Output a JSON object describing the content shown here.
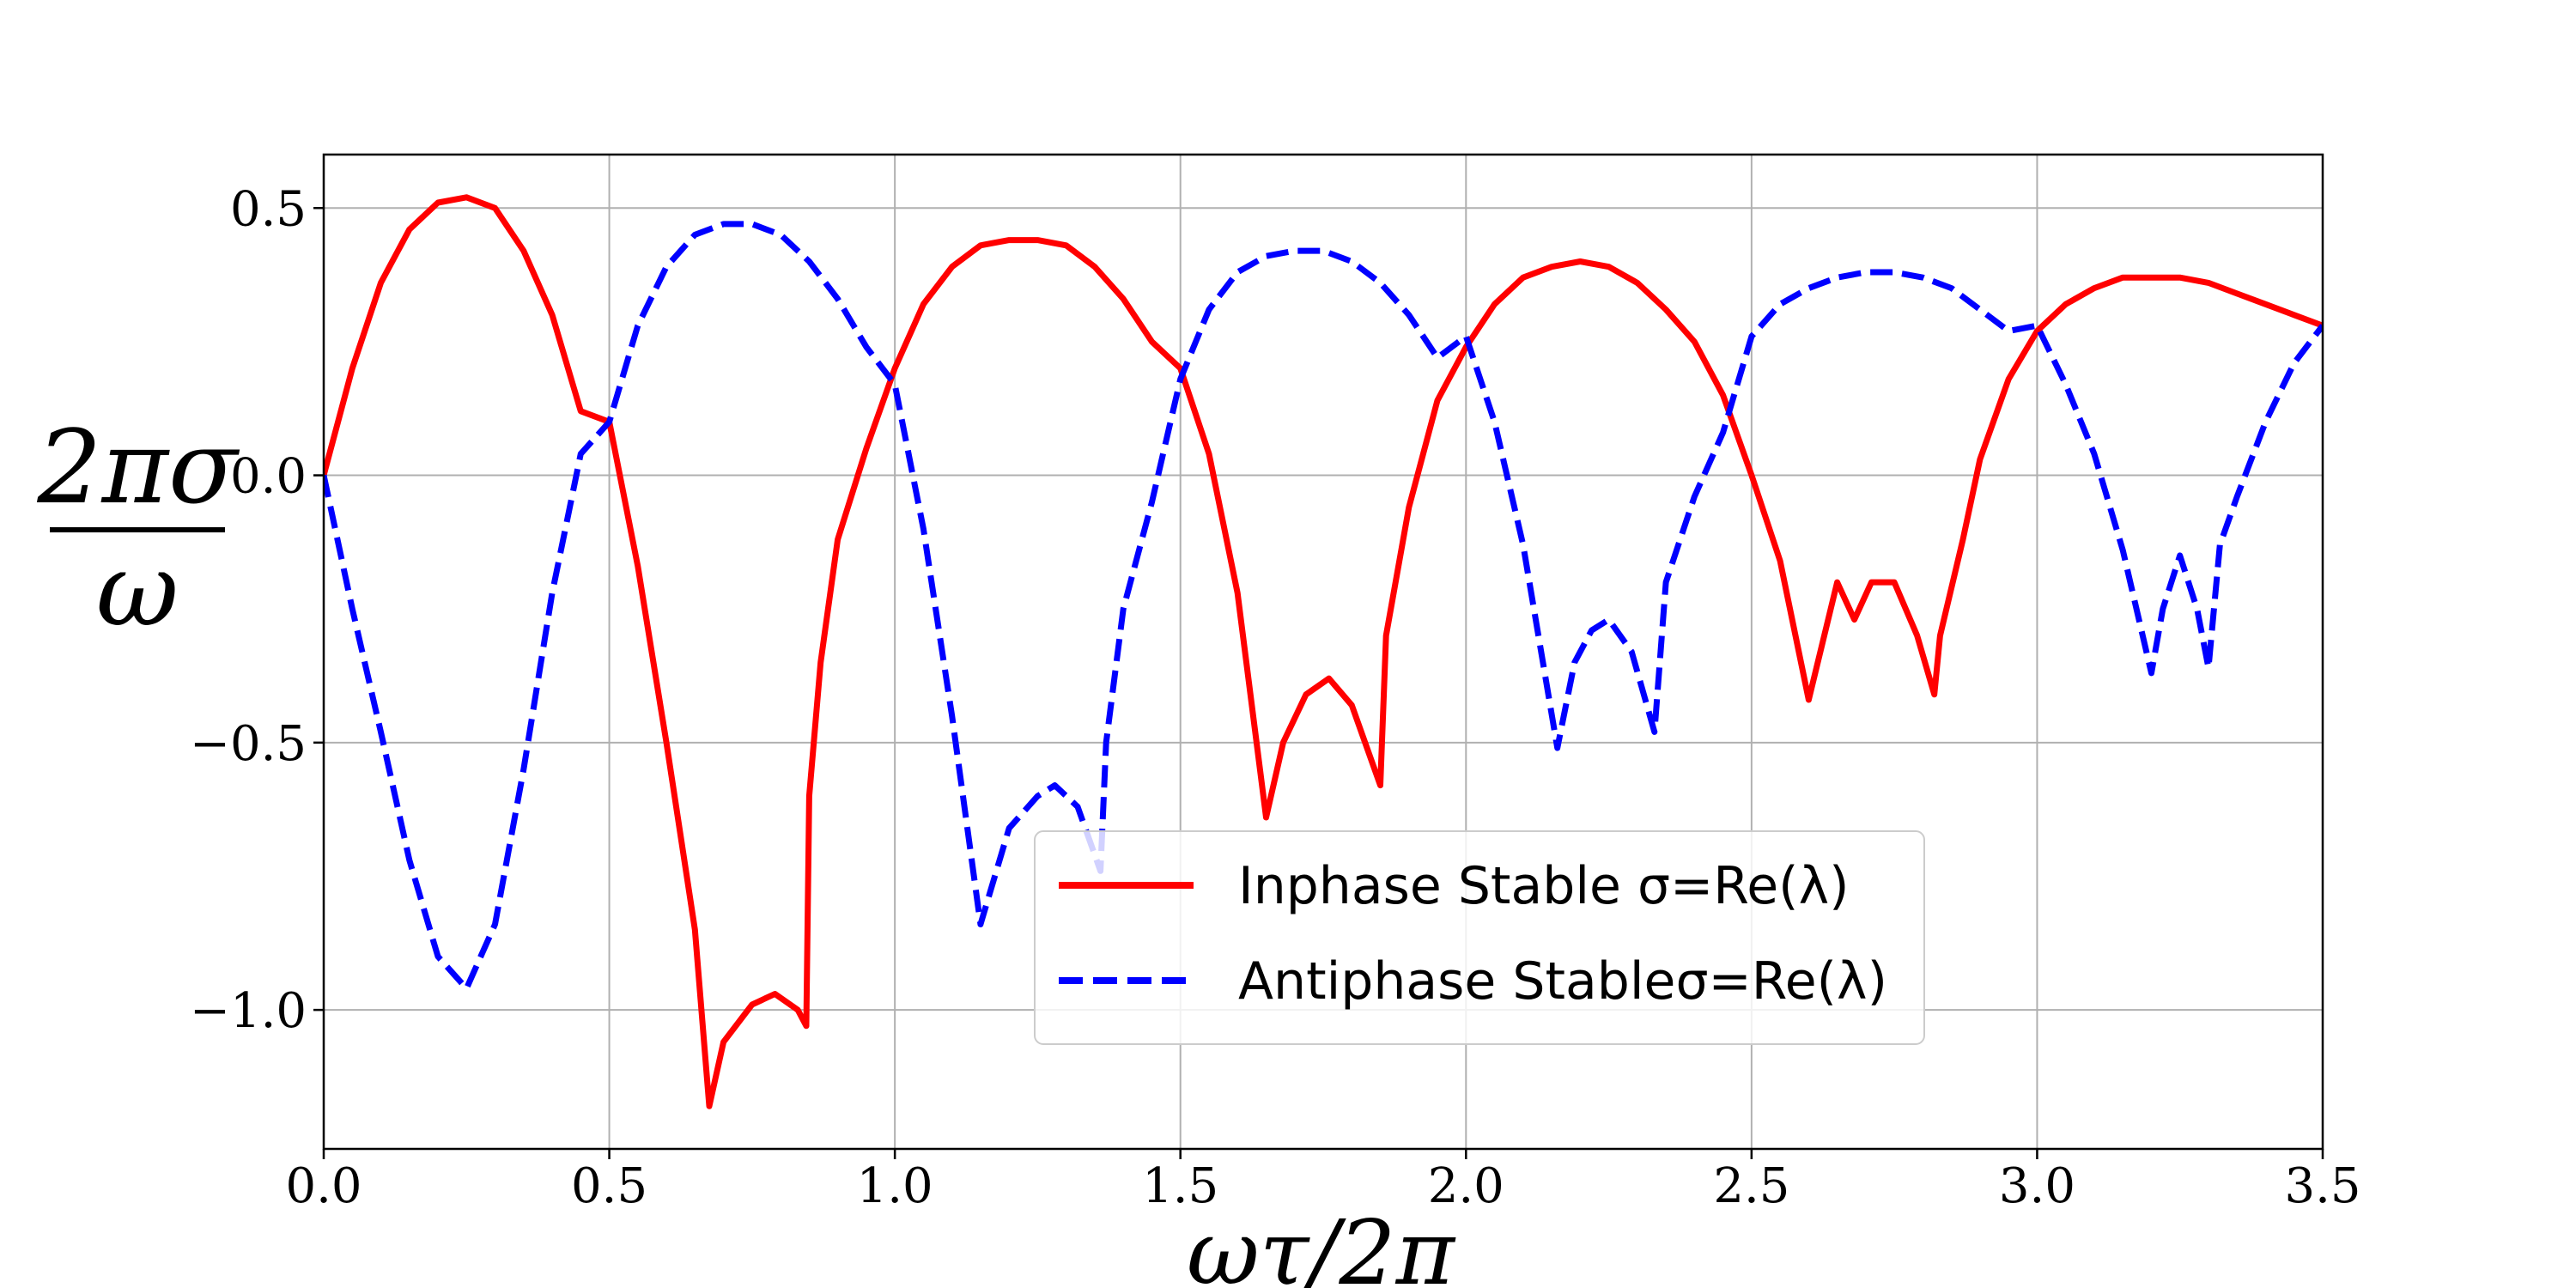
{
  "chart_data": {
    "type": "line",
    "title": "",
    "xlabel": "ωτ/2π",
    "ylabel": {
      "numerator": "2πσ",
      "denominator": "ω"
    },
    "xlim": [
      0.0,
      3.5
    ],
    "ylim": [
      -1.26,
      0.6
    ],
    "grid": true,
    "legend_position": "lower-center",
    "x_ticks": [
      "0.0",
      "0.5",
      "1.0",
      "1.5",
      "2.0",
      "2.5",
      "3.0",
      "3.5"
    ],
    "x_tick_values": [
      0.0,
      0.5,
      1.0,
      1.5,
      2.0,
      2.5,
      3.0,
      3.5
    ],
    "y_ticks": [
      "0.5",
      "0.0",
      "−0.5",
      "−1.0"
    ],
    "y_tick_values": [
      0.5,
      0.0,
      -0.5,
      -1.0
    ],
    "series": [
      {
        "name": "Inphase Stable σ=Re(λ)",
        "color": "#ff0000",
        "style": "solid",
        "x": [
          0.0,
          0.05,
          0.1,
          0.15,
          0.2,
          0.25,
          0.3,
          0.35,
          0.4,
          0.45,
          0.5,
          0.55,
          0.6,
          0.65,
          0.675,
          0.7,
          0.75,
          0.79,
          0.83,
          0.845,
          0.85,
          0.87,
          0.9,
          0.95,
          1.0,
          1.05,
          1.1,
          1.15,
          1.2,
          1.25,
          1.3,
          1.35,
          1.4,
          1.45,
          1.5,
          1.55,
          1.6,
          1.65,
          1.68,
          1.72,
          1.76,
          1.8,
          1.85,
          1.86,
          1.9,
          1.95,
          2.0,
          2.05,
          2.1,
          2.15,
          2.2,
          2.25,
          2.3,
          2.35,
          2.4,
          2.45,
          2.5,
          2.55,
          2.6,
          2.65,
          2.68,
          2.71,
          2.75,
          2.79,
          2.82,
          2.83,
          2.87,
          2.9,
          2.95,
          3.0,
          3.05,
          3.1,
          3.15,
          3.2,
          3.25,
          3.3,
          3.35,
          3.4,
          3.45,
          3.5
        ],
        "values": [
          0.0,
          0.2,
          0.36,
          0.46,
          0.51,
          0.52,
          0.5,
          0.42,
          0.3,
          0.12,
          0.1,
          -0.17,
          -0.5,
          -0.85,
          -1.18,
          -1.06,
          -0.99,
          -0.97,
          -1.0,
          -1.03,
          -0.6,
          -0.35,
          -0.12,
          0.05,
          0.2,
          0.32,
          0.39,
          0.43,
          0.44,
          0.44,
          0.43,
          0.39,
          0.33,
          0.25,
          0.2,
          0.04,
          -0.22,
          -0.64,
          -0.5,
          -0.41,
          -0.38,
          -0.43,
          -0.58,
          -0.3,
          -0.06,
          0.14,
          0.24,
          0.32,
          0.37,
          0.39,
          0.4,
          0.39,
          0.36,
          0.31,
          0.25,
          0.15,
          -0.0,
          -0.16,
          -0.42,
          -0.2,
          -0.27,
          -0.2,
          -0.2,
          -0.3,
          -0.41,
          -0.3,
          -0.12,
          0.03,
          0.18,
          0.27,
          0.32,
          0.35,
          0.37,
          0.37,
          0.37,
          0.36,
          0.34,
          0.32,
          0.3,
          0.28
        ]
      },
      {
        "name": "Antiphase Stableσ=Re(λ)",
        "color": "#0000ff",
        "style": "dashed",
        "x": [
          0.0,
          0.05,
          0.1,
          0.15,
          0.2,
          0.25,
          0.3,
          0.35,
          0.4,
          0.45,
          0.5,
          0.55,
          0.6,
          0.65,
          0.7,
          0.75,
          0.8,
          0.85,
          0.9,
          0.95,
          1.0,
          1.05,
          1.1,
          1.15,
          1.2,
          1.25,
          1.28,
          1.32,
          1.36,
          1.37,
          1.4,
          1.45,
          1.5,
          1.55,
          1.6,
          1.65,
          1.7,
          1.75,
          1.8,
          1.85,
          1.9,
          1.95,
          2.0,
          2.05,
          2.1,
          2.16,
          2.19,
          2.22,
          2.25,
          2.29,
          2.33,
          2.35,
          2.4,
          2.45,
          2.5,
          2.55,
          2.6,
          2.65,
          2.7,
          2.75,
          2.8,
          2.85,
          2.9,
          2.95,
          3.0,
          3.05,
          3.1,
          3.15,
          3.2,
          3.22,
          3.25,
          3.28,
          3.3,
          3.32,
          3.35,
          3.4,
          3.45,
          3.5
        ],
        "values": [
          0.0,
          -0.25,
          -0.48,
          -0.72,
          -0.9,
          -0.96,
          -0.84,
          -0.55,
          -0.22,
          0.04,
          0.1,
          0.28,
          0.39,
          0.45,
          0.47,
          0.47,
          0.45,
          0.4,
          0.33,
          0.24,
          0.17,
          -0.1,
          -0.45,
          -0.84,
          -0.66,
          -0.6,
          -0.58,
          -0.62,
          -0.74,
          -0.5,
          -0.25,
          -0.05,
          0.18,
          0.31,
          0.38,
          0.41,
          0.42,
          0.42,
          0.4,
          0.36,
          0.3,
          0.22,
          0.26,
          0.1,
          -0.13,
          -0.51,
          -0.35,
          -0.29,
          -0.27,
          -0.33,
          -0.48,
          -0.2,
          -0.04,
          0.08,
          0.26,
          0.32,
          0.35,
          0.37,
          0.38,
          0.38,
          0.37,
          0.35,
          0.31,
          0.27,
          0.28,
          0.17,
          0.04,
          -0.14,
          -0.37,
          -0.25,
          -0.15,
          -0.25,
          -0.36,
          -0.13,
          -0.04,
          0.1,
          0.21,
          0.28
        ]
      }
    ]
  }
}
